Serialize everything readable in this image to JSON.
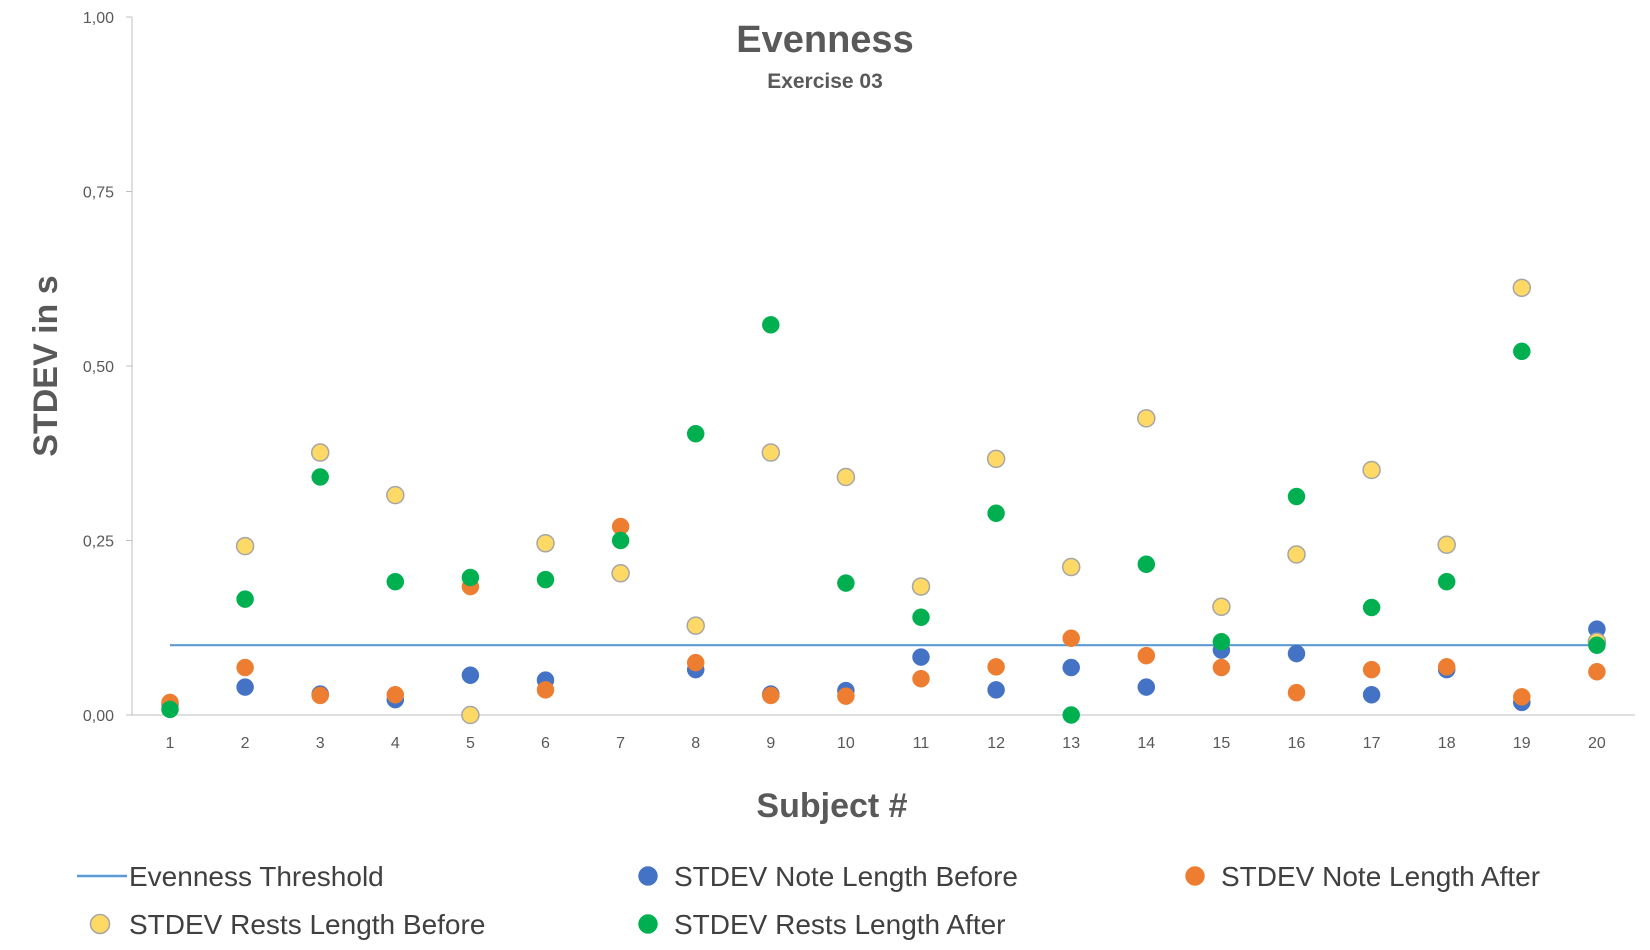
{
  "chart_data": {
    "type": "scatter",
    "title": "Evenness",
    "subtitle": "Exercise 03",
    "xlabel": "Subject #",
    "ylabel": "STDEV in s",
    "x": [
      1,
      2,
      3,
      4,
      5,
      6,
      7,
      8,
      9,
      10,
      11,
      12,
      13,
      14,
      15,
      16,
      17,
      18,
      19,
      20
    ],
    "x_tick_labels": [
      "1",
      "2",
      "3",
      "4",
      "5",
      "6",
      "7",
      "8",
      "9",
      "10",
      "11",
      "12",
      "13",
      "14",
      "15",
      "16",
      "17",
      "18",
      "19",
      "20"
    ],
    "ylim": [
      0,
      1
    ],
    "y_ticks": [
      0,
      0.25,
      0.5,
      0.75,
      1
    ],
    "y_tick_labels": [
      "0,00",
      "0,25",
      "0,50",
      "0,75",
      "1,00"
    ],
    "grid": false,
    "legend_position": "bottom",
    "threshold": {
      "name": "Evenness Threshold",
      "value": 0.1,
      "x_range": [
        1,
        20
      ],
      "color": "#5B9BD5"
    },
    "series": [
      {
        "name": "STDEV Note Length Before",
        "color": "#4472C4",
        "values": [
          0.015,
          0.04,
          0.03,
          0.022,
          0.057,
          0.05,
          null,
          0.065,
          0.03,
          0.035,
          0.083,
          0.036,
          0.068,
          0.04,
          0.093,
          0.088,
          0.029,
          0.065,
          0.018,
          0.123
        ]
      },
      {
        "name": "STDEV Note Length After",
        "color": "#ED7D31",
        "values": [
          0.018,
          0.068,
          0.028,
          0.029,
          0.184,
          0.036,
          0.27,
          0.075,
          0.028,
          0.027,
          0.052,
          0.069,
          0.11,
          0.085,
          0.068,
          0.032,
          0.065,
          0.069,
          0.026,
          0.062
        ]
      },
      {
        "name": "STDEV Rests Length Before",
        "color": "#FFD966",
        "values": [
          null,
          0.242,
          0.376,
          0.315,
          0.0,
          0.246,
          0.203,
          0.128,
          0.376,
          0.341,
          0.184,
          0.367,
          0.212,
          0.425,
          0.155,
          0.23,
          0.351,
          0.244,
          0.612,
          0.105
        ]
      },
      {
        "name": "STDEV Rests Length After",
        "color": "#00B050",
        "values": [
          0.008,
          0.166,
          0.341,
          0.191,
          0.197,
          0.194,
          0.25,
          0.403,
          0.559,
          0.189,
          0.14,
          0.289,
          0.0,
          0.216,
          0.105,
          0.313,
          0.154,
          0.191,
          0.521,
          0.1
        ]
      }
    ]
  }
}
